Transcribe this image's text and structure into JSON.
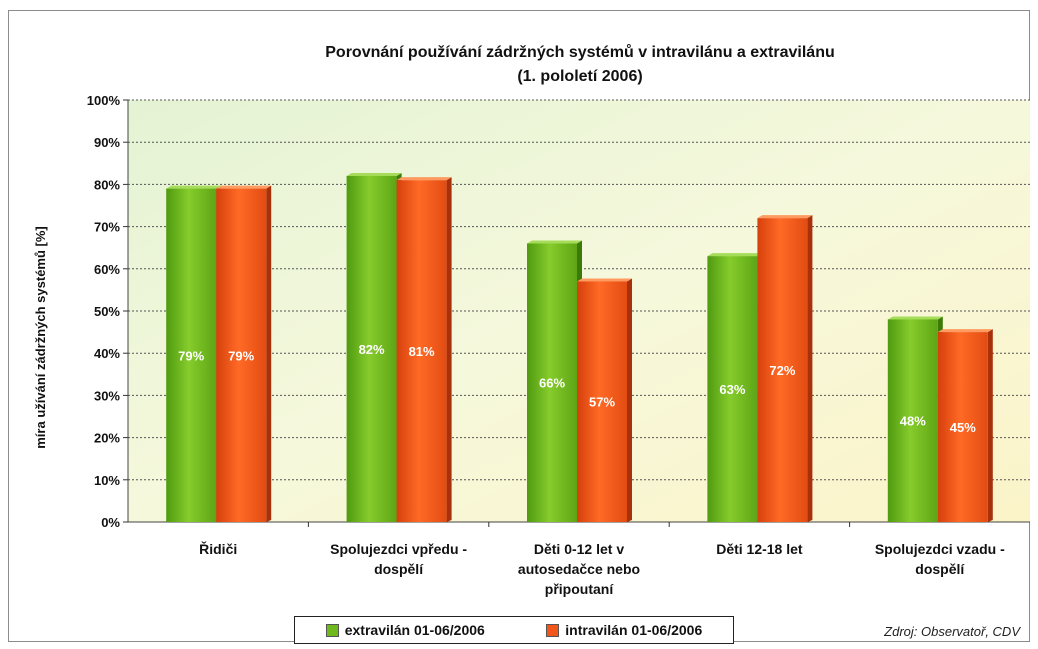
{
  "chart_data": {
    "type": "bar",
    "title": "Porovnání používání zádržných systémů v intravilánu a extravilánu",
    "subtitle": "(1. pololetí 2006)",
    "ylabel": "míra užívání zádržných systémů [%]",
    "xlabel": "",
    "ylim": [
      0,
      100
    ],
    "yticks": [
      "0%",
      "10%",
      "20%",
      "30%",
      "40%",
      "50%",
      "60%",
      "70%",
      "80%",
      "90%",
      "100%"
    ],
    "grid": true,
    "legend_position": "bottom",
    "categories": [
      [
        "Řidiči"
      ],
      [
        "Spolujezdci vpředu -",
        "dospělí"
      ],
      [
        "Děti 0-12 let v",
        "autosedačce nebo",
        "připoutaní"
      ],
      [
        "Děti 12-18 let"
      ],
      [
        "Spolujezdci vzadu -",
        "dospělí"
      ]
    ],
    "series": [
      {
        "name": "extravilán 01-06/2006",
        "color": "#6fb81e",
        "values": [
          79,
          82,
          66,
          63,
          48
        ],
        "labels": [
          "79%",
          "82%",
          "66%",
          "63%",
          "48%"
        ]
      },
      {
        "name": "intravilán 01-06/2006",
        "color": "#f2561a",
        "values": [
          79,
          81,
          57,
          72,
          45
        ],
        "labels": [
          "79%",
          "81%",
          "57%",
          "72%",
          "45%"
        ]
      }
    ],
    "source": "Zdroj: Observatoř, CDV"
  }
}
